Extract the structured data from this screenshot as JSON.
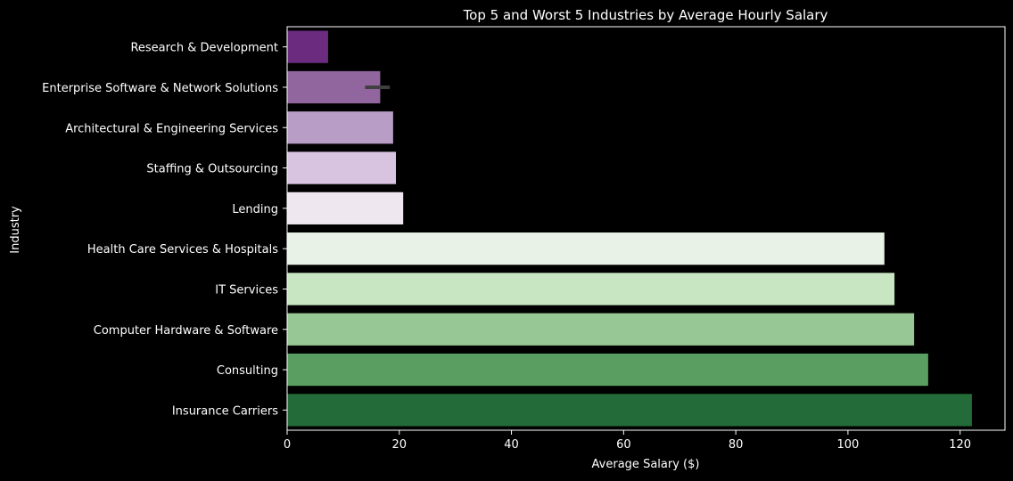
{
  "chart_data": {
    "type": "bar",
    "orientation": "horizontal",
    "title": "Top 5 and Worst 5 Industries by Average Hourly Salary",
    "xlabel": "Average Salary ($)",
    "ylabel": "Industry",
    "xlim": [
      0,
      128
    ],
    "xticks": [
      0,
      20,
      40,
      60,
      80,
      100,
      120
    ],
    "grid": false,
    "categories": [
      "Research & Development",
      "Enterprise Software & Network Solutions",
      "Architectural & Engineering Services",
      "Staffing & Outsourcing",
      "Lending",
      "Health Care Services & Hospitals",
      "IT Services",
      "Computer Hardware & Software",
      "Consulting",
      "Insurance Carriers"
    ],
    "values": [
      7.3,
      16.6,
      18.9,
      19.4,
      20.7,
      106.5,
      108.3,
      111.8,
      114.3,
      122.1
    ],
    "error_bars": [
      null,
      [
        13.9,
        18.3
      ],
      null,
      null,
      null,
      null,
      null,
      null,
      null,
      null
    ],
    "colors": [
      "#6b2c7f",
      "#91669e",
      "#b89dc6",
      "#d8c4e0",
      "#efe7f0",
      "#e9f2e6",
      "#c8e6c2",
      "#96c794",
      "#5a9f61",
      "#236b38"
    ]
  }
}
